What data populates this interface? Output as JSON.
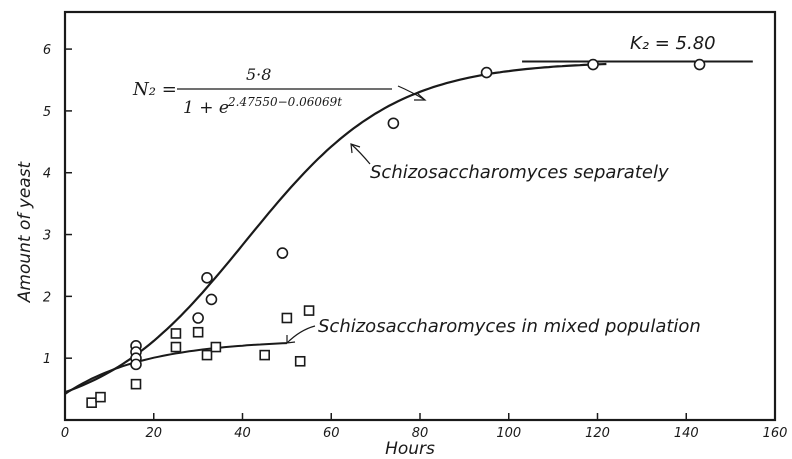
{
  "chart_data": {
    "type": "scatter",
    "xlabel": "Hours",
    "ylabel": "Amount of yeast",
    "xlim": [
      0,
      160
    ],
    "ylim": [
      0,
      6.6
    ],
    "x_ticks": [
      "0",
      "20",
      "40",
      "60",
      "80",
      "100",
      "120",
      "140",
      "160"
    ],
    "y_ticks": [
      "1",
      "2",
      "3",
      "4",
      "5",
      "6"
    ],
    "grid": false,
    "series": [
      {
        "marker": "circle",
        "points": [
          {
            "x": 16,
            "y": 1.2
          },
          {
            "x": 16,
            "y": 1.1
          },
          {
            "x": 16,
            "y": 1.0
          },
          {
            "x": 16,
            "y": 0.9
          },
          {
            "x": 30,
            "y": 1.65
          },
          {
            "x": 32,
            "y": 2.3
          },
          {
            "x": 33,
            "y": 1.95
          },
          {
            "x": 49,
            "y": 2.7
          },
          {
            "x": 74,
            "y": 4.8
          },
          {
            "x": 95,
            "y": 5.62
          },
          {
            "x": 119,
            "y": 5.75
          },
          {
            "x": 143,
            "y": 5.75
          }
        ]
      },
      {
        "marker": "square",
        "points": [
          {
            "x": 6,
            "y": 0.28
          },
          {
            "x": 8,
            "y": 0.37
          },
          {
            "x": 16,
            "y": 0.58
          },
          {
            "x": 25,
            "y": 1.4
          },
          {
            "x": 25,
            "y": 1.18
          },
          {
            "x": 30,
            "y": 1.42
          },
          {
            "x": 32,
            "y": 1.05
          },
          {
            "x": 34,
            "y": 1.18
          },
          {
            "x": 45,
            "y": 1.05
          },
          {
            "x": 50,
            "y": 1.65
          },
          {
            "x": 53,
            "y": 0.95
          },
          {
            "x": 55,
            "y": 1.77
          }
        ]
      }
    ],
    "curves": [
      {
        "name": "Schizosaccharomyces separately",
        "formula": "5.8 / (1 + exp(2.47550 - 0.06069 t))",
        "x_range": [
          0,
          122
        ]
      },
      {
        "name": "Schizosaccharomyces in mixed population",
        "x_range": [
          0,
          50
        ],
        "y0": 0.42,
        "asymptote": 1.3
      }
    ],
    "asymptote_line": {
      "y": 5.8,
      "x_range": [
        103,
        155
      ]
    },
    "annotations": {
      "separate": "Schizosaccharomyces separately",
      "mixed": "Schizosaccharomyces in mixed population",
      "k_label": "K₂ = 5.80",
      "equation_lhs": "N₂ =",
      "equation_numerator": "5·8",
      "equation_denominator": "1 + e",
      "equation_exponent": "2.47550−0.06069t"
    }
  }
}
